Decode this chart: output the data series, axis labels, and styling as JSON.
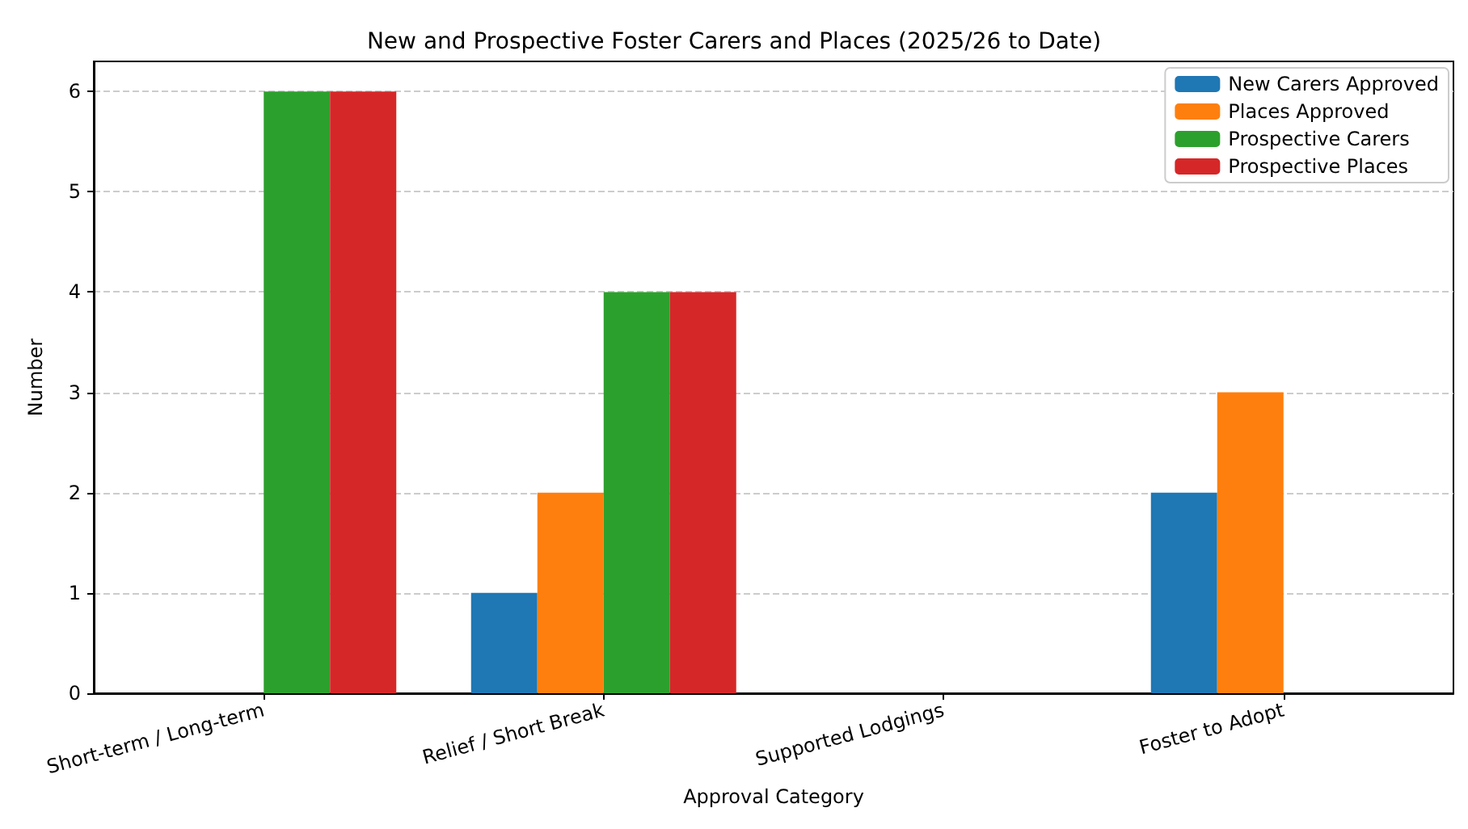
{
  "chart_data": {
    "type": "bar",
    "title": "New and Prospective Foster Carers and Places (2025/26 to Date)",
    "xlabel": "Approval Category",
    "ylabel": "Number",
    "categories": [
      "Short-term / Long-term",
      "Relief / Short Break",
      "Supported Lodgings",
      "Foster to Adopt"
    ],
    "series": [
      {
        "name": "New Carers Approved",
        "color": "#1f77b4",
        "values": [
          0,
          1,
          0,
          2
        ]
      },
      {
        "name": "Places Approved",
        "color": "#ff7f0e",
        "values": [
          0,
          2,
          0,
          3
        ]
      },
      {
        "name": "Prospective Carers",
        "color": "#2ca02c",
        "values": [
          6,
          4,
          0,
          0
        ]
      },
      {
        "name": "Prospective Places",
        "color": "#d62728",
        "values": [
          6,
          4,
          0,
          0
        ]
      }
    ],
    "ylim": [
      0,
      6.3
    ],
    "yticks": [
      0,
      1,
      2,
      3,
      4,
      5,
      6
    ],
    "grid": "y",
    "legend": "top right"
  }
}
